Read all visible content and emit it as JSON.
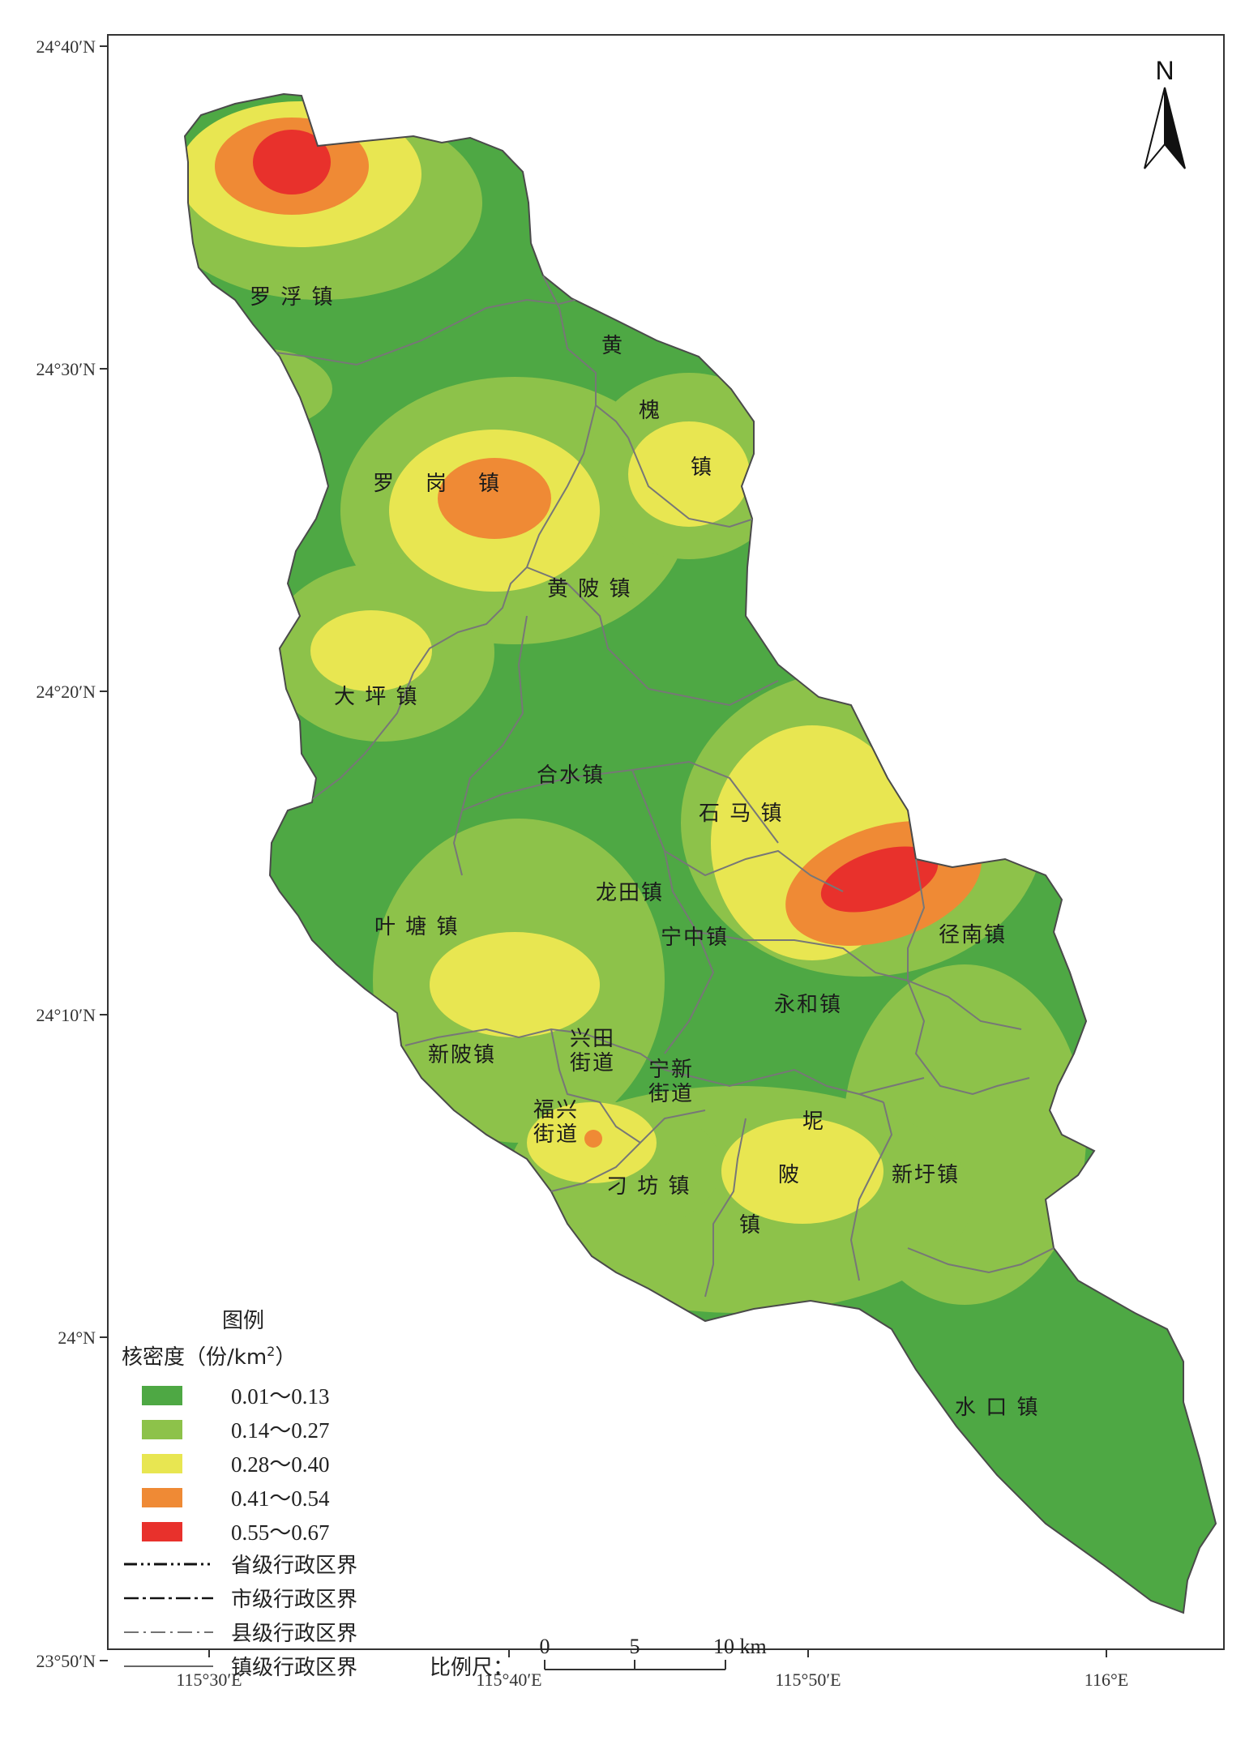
{
  "colors": {
    "class1": "#4ea844",
    "class2": "#8dc24a",
    "class3": "#e8e651",
    "class4": "#ef8a35",
    "class5": "#e8312c",
    "town_boundary": "#777777",
    "frame": "#333333"
  },
  "axes": {
    "lat_ticks": [
      "24°40′N",
      "24°30′N",
      "24°20′N",
      "24°10′N",
      "24°N",
      "23°50′N"
    ],
    "lon_ticks": [
      "115°30′E",
      "115°40′E",
      "115°50′E",
      "116°E"
    ]
  },
  "north_arrow": {
    "label": "N",
    "icon": "north-arrow-icon"
  },
  "towns": [
    "罗 浮 镇",
    "黄",
    "槐",
    "镇",
    "罗",
    "岗",
    "镇",
    "黄 陂 镇",
    "大 坪 镇",
    "合水镇",
    "石 马 镇",
    "叶 塘 镇",
    "龙田镇",
    "宁中镇",
    "径南镇",
    "永和镇",
    "新陂镇",
    "兴田",
    "街道",
    "宁新",
    "街道",
    "福兴",
    "街道",
    "刁 坊 镇",
    "坭",
    "陂",
    "镇",
    "新圩镇",
    "水 口 镇"
  ],
  "legend": {
    "title": "图例",
    "subtitle_main": "核密度（份/km",
    "subtitle_sup": "2",
    "subtitle_end": "）",
    "classes": [
      {
        "label": "0.01～0.13",
        "color": "#4ea844"
      },
      {
        "label": "0.14～0.27",
        "color": "#8dc24a"
      },
      {
        "label": "0.28～0.40",
        "color": "#e8e651"
      },
      {
        "label": "0.41～0.54",
        "color": "#ef8a35"
      },
      {
        "label": "0.55～0.67",
        "color": "#e8312c"
      }
    ],
    "boundaries": [
      "省级行政区界",
      "市级行政区界",
      "县级行政区界",
      "镇级行政区界"
    ]
  },
  "scale_bar": {
    "label": "比例尺：",
    "ticks": [
      "0",
      "5",
      "10 km"
    ]
  }
}
